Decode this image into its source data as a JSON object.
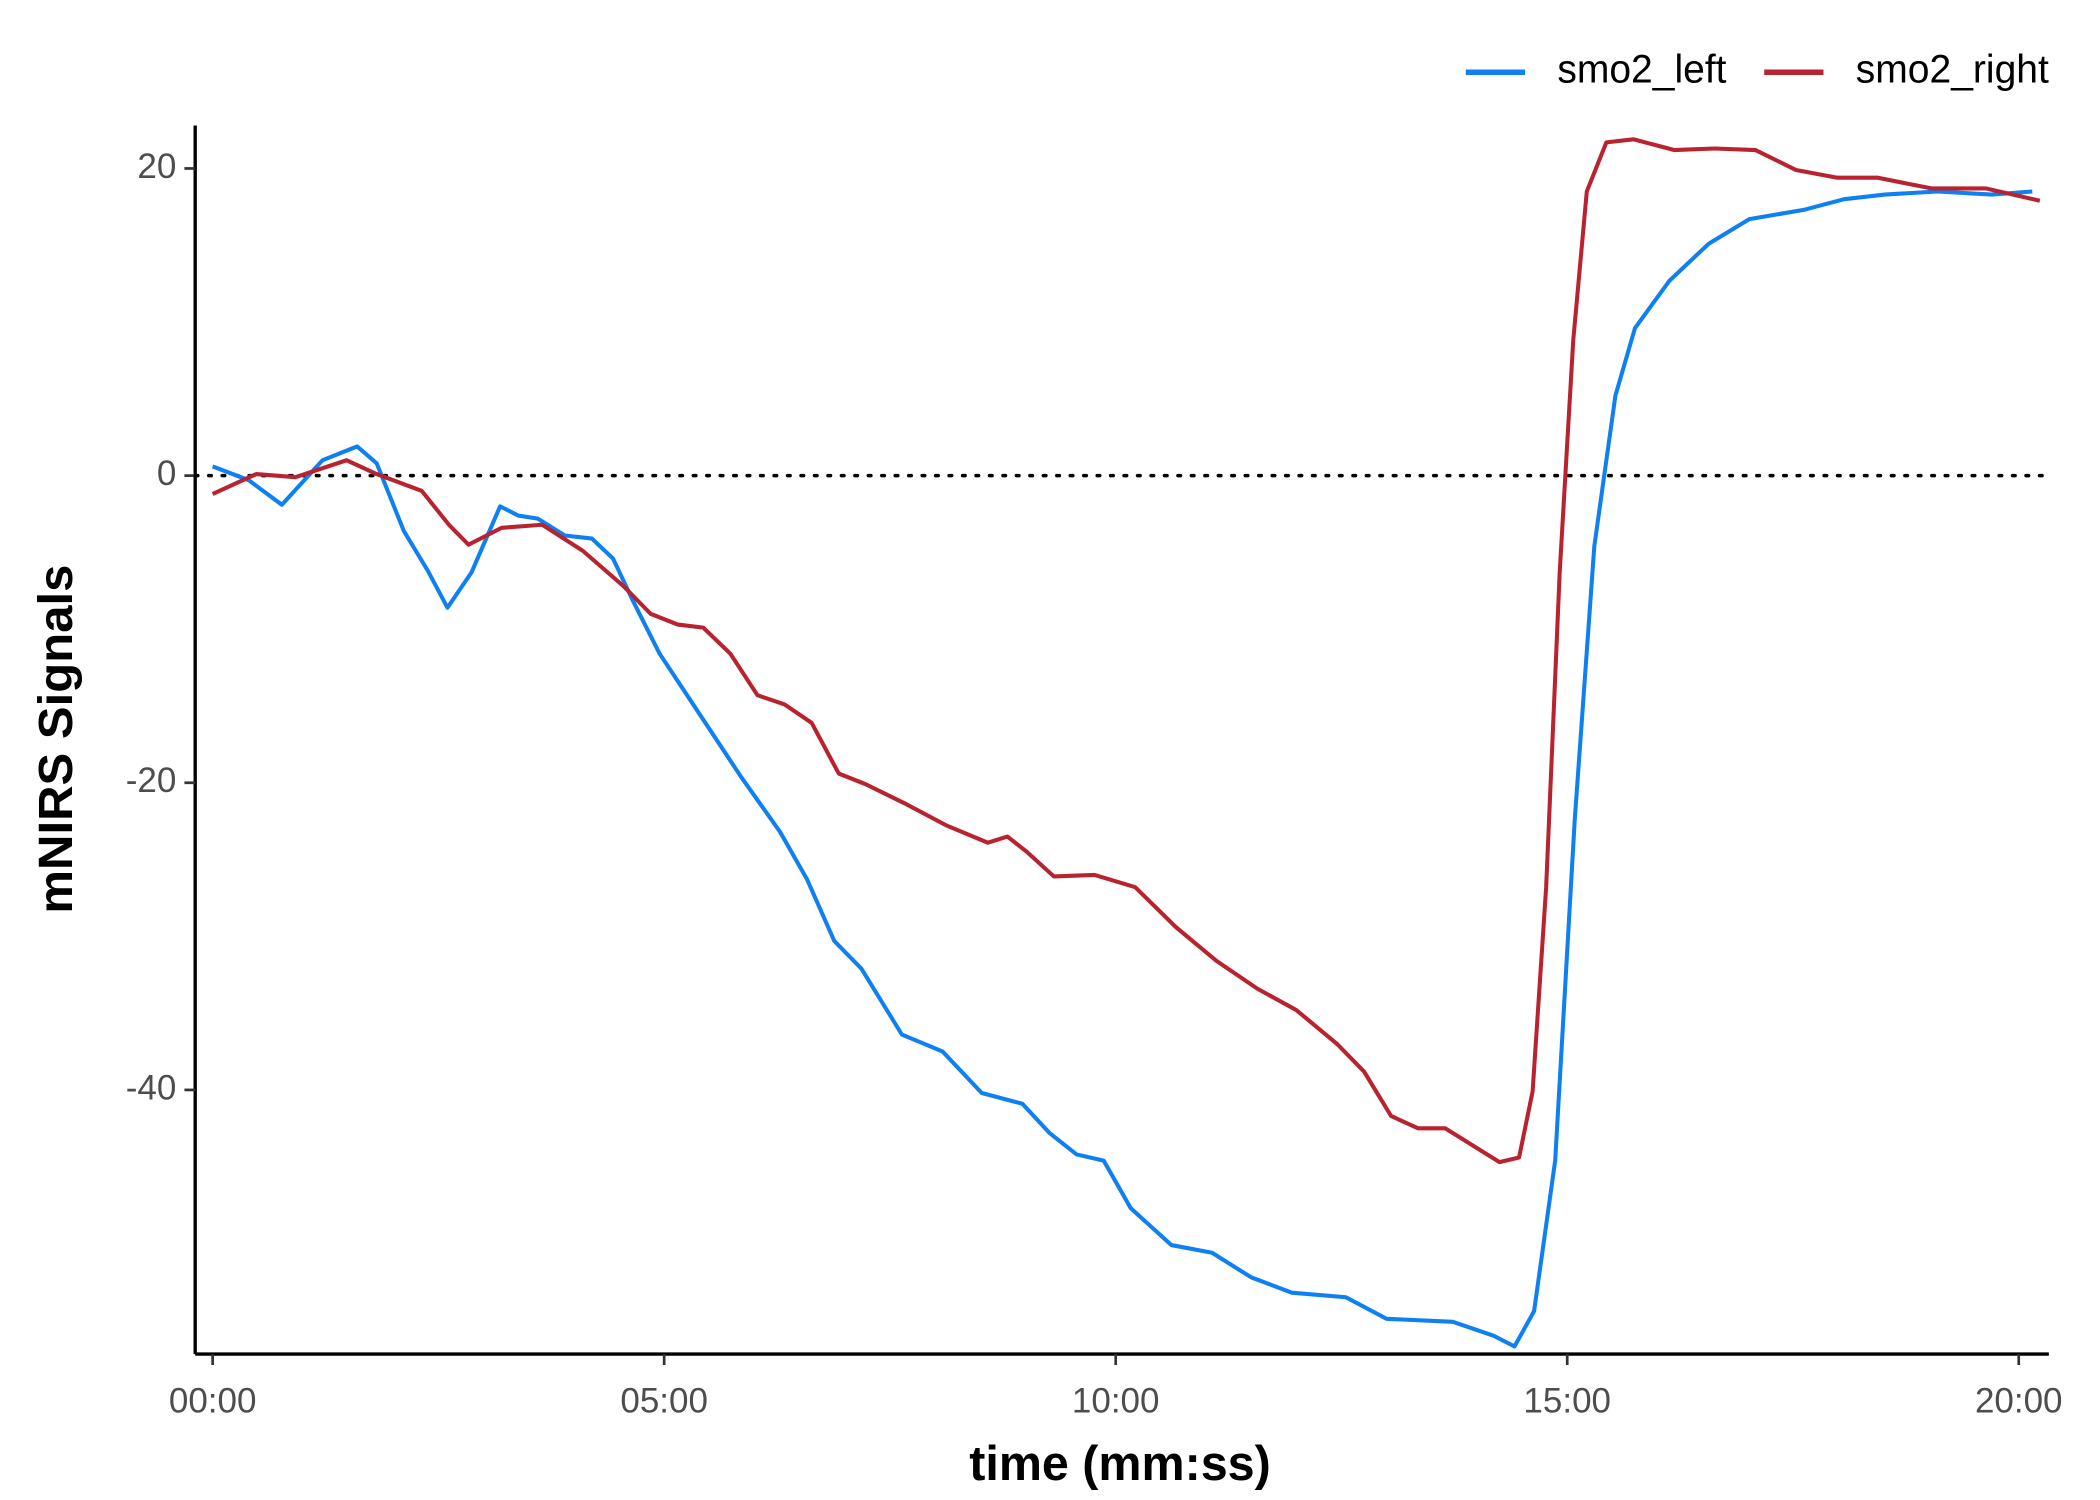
{
  "chart_data": {
    "type": "line",
    "x_label": "time (mm:ss)",
    "y_label": "mNIRS Signals",
    "xlim": [
      -11.6,
      1220
    ],
    "ylim": [
      -57.2,
      22.8
    ],
    "xticks": [
      {
        "value": 0,
        "label": "00:00"
      },
      {
        "value": 300,
        "label": "05:00"
      },
      {
        "value": 600,
        "label": "10:00"
      },
      {
        "value": 900,
        "label": "15:00"
      },
      {
        "value": 1200,
        "label": "20:00"
      }
    ],
    "yticks": [
      20,
      0,
      -20,
      -40
    ],
    "reference_line": 0,
    "grid": false,
    "legend": "top-right",
    "series": [
      {
        "name": "smo2_left",
        "color": "#0e80f2",
        "x": [
          0,
          24,
          46,
          73,
          96,
          109,
          127,
          143,
          156,
          172,
          191,
          203,
          216,
          234,
          252,
          266,
          279,
          297,
          324,
          351,
          377,
          395,
          413,
          431,
          458,
          485,
          511,
          538,
          556,
          574,
          592,
          610,
          637,
          664,
          690,
          717,
          753,
          780,
          824,
          851,
          865,
          878,
          892,
          905,
          918,
          932,
          945,
          968,
          994,
          1021,
          1057,
          1084,
          1111,
          1146,
          1182,
          1209
        ],
        "values": [
          0.6,
          -0.3,
          -1.9,
          1.0,
          1.9,
          0.8,
          -3.6,
          -6.2,
          -8.6,
          -6.3,
          -2.0,
          -2.6,
          -2.8,
          -3.9,
          -4.1,
          -5.4,
          -8.1,
          -11.6,
          -15.6,
          -19.6,
          -23.2,
          -26.3,
          -30.3,
          -32.1,
          -36.4,
          -37.5,
          -40.2,
          -40.9,
          -42.8,
          -44.2,
          -44.6,
          -47.7,
          -50.1,
          -50.6,
          -52.2,
          -53.2,
          -53.5,
          -54.9,
          -55.1,
          -56.0,
          -56.7,
          -54.4,
          -44.6,
          -22.4,
          -4.6,
          5.2,
          9.6,
          12.7,
          15.1,
          16.7,
          17.3,
          18.0,
          18.3,
          18.5,
          18.3,
          18.5
        ]
      },
      {
        "name": "smo2_right",
        "color": "#b8232f",
        "x": [
          0,
          29,
          55,
          89,
          109,
          139,
          157,
          170,
          192,
          219,
          246,
          273,
          291,
          309,
          326,
          344,
          362,
          380,
          398,
          416,
          434,
          461,
          488,
          515,
          528,
          541,
          559,
          586,
          613,
          640,
          667,
          694,
          720,
          747,
          765,
          783,
          801,
          819,
          837,
          855,
          868,
          877,
          886,
          895,
          904,
          913,
          926,
          944,
          971,
          998,
          1025,
          1052,
          1079,
          1106,
          1142,
          1178,
          1214
        ],
        "values": [
          -1.2,
          0.1,
          -0.1,
          1.0,
          0.1,
          -1.0,
          -3.2,
          -4.5,
          -3.4,
          -3.2,
          -4.9,
          -7.2,
          -9.0,
          -9.7,
          -9.9,
          -11.6,
          -14.3,
          -14.9,
          -16.1,
          -19.4,
          -20.1,
          -21.4,
          -22.8,
          -23.9,
          -23.5,
          -24.5,
          -26.1,
          -26.0,
          -26.8,
          -29.4,
          -31.6,
          -33.4,
          -34.8,
          -37.0,
          -38.8,
          -41.7,
          -42.5,
          -42.5,
          -43.6,
          -44.7,
          -44.4,
          -40.1,
          -26.8,
          -6.3,
          8.8,
          18.5,
          21.7,
          21.9,
          21.2,
          21.3,
          21.2,
          19.9,
          19.4,
          19.4,
          18.7,
          18.7,
          17.9
        ]
      }
    ]
  }
}
